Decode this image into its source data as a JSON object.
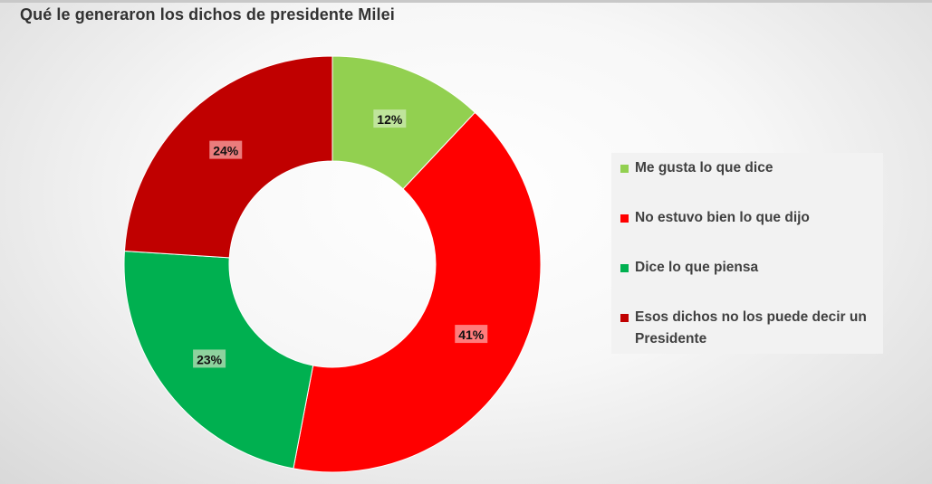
{
  "title": "Qué le generaron los dichos de presidente Milei",
  "chart_data": {
    "type": "pie",
    "variant": "donut",
    "title": "Qué le generaron los dichos de presidente Milei",
    "legend_position": "right",
    "series": [
      {
        "name": "Me gusta lo que dice",
        "value": 12,
        "label": "12%",
        "color": "#92d050"
      },
      {
        "name": "No estuvo bien lo que dijo",
        "value": 41,
        "label": "41%",
        "color": "#ff0000"
      },
      {
        "name": "Dice lo que piensa",
        "value": 23,
        "label": "23%",
        "color": "#00b050"
      },
      {
        "name": "Esos dichos no los puede decir un Presidente",
        "value": 24,
        "label": "24%",
        "color": "#c00000"
      }
    ]
  },
  "legend": {
    "items": [
      {
        "label": "Me gusta lo que dice",
        "color": "#92d050"
      },
      {
        "label": "No estuvo bien lo que dijo",
        "color": "#ff0000"
      },
      {
        "label": "Dice lo que piensa",
        "color": "#00b050"
      },
      {
        "label": "Esos dichos no los puede decir un Presidente",
        "color": "#c00000"
      }
    ]
  }
}
